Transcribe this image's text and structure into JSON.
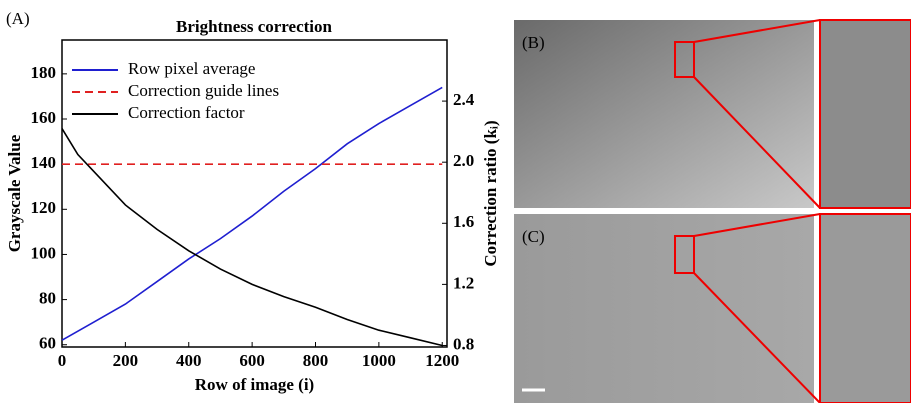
{
  "chart_data": {
    "type": "line",
    "panel_label": "(A)",
    "title": "Brightness correction",
    "x_label": "Row of image (i)",
    "y_label": "Grayscale Value",
    "y2_label": "Correction ratio (kᵢ)",
    "xlim": [
      0,
      1215
    ],
    "xticks": [
      0,
      200,
      400,
      600,
      800,
      1000,
      1200
    ],
    "ylim": [
      59,
      195
    ],
    "yticks": [
      60,
      80,
      100,
      120,
      140,
      160,
      180
    ],
    "y2lim": [
      0.79,
      2.8
    ],
    "y2ticks": [
      {
        "value": 0.8,
        "label": "0.8"
      },
      {
        "value": 1.2,
        "label": "1.2"
      },
      {
        "value": 1.6,
        "label": "1.6"
      },
      {
        "value": 2.0,
        "label": "2.0"
      },
      {
        "value": 2.4,
        "label": "2.4"
      }
    ],
    "legend": "upper left",
    "series": [
      {
        "name": "Row pixel average",
        "color": "#1f1fd0",
        "dash": false,
        "x": [
          0,
          100,
          200,
          300,
          400,
          500,
          600,
          700,
          800,
          900,
          1000,
          1100,
          1200
        ],
        "values": [
          62,
          70,
          78,
          88,
          98,
          107,
          117,
          128,
          138,
          149,
          158,
          166,
          174
        ]
      },
      {
        "name": "Correction guide lines",
        "color": "#e02020",
        "dash": true,
        "x": [
          0,
          1200
        ],
        "values": [
          140,
          140
        ]
      },
      {
        "name": "Correction factor",
        "color": "#000000",
        "dash": false,
        "axis": "y2",
        "x": [
          0,
          50,
          100,
          200,
          300,
          400,
          500,
          600,
          700,
          800,
          900,
          1000,
          1100,
          1200
        ],
        "values": [
          2.22,
          2.05,
          1.94,
          1.72,
          1.56,
          1.42,
          1.3,
          1.2,
          1.12,
          1.05,
          0.97,
          0.9,
          0.85,
          0.8
        ]
      }
    ]
  },
  "images": {
    "top_label": "(B)",
    "bottom_label": "(C)"
  }
}
